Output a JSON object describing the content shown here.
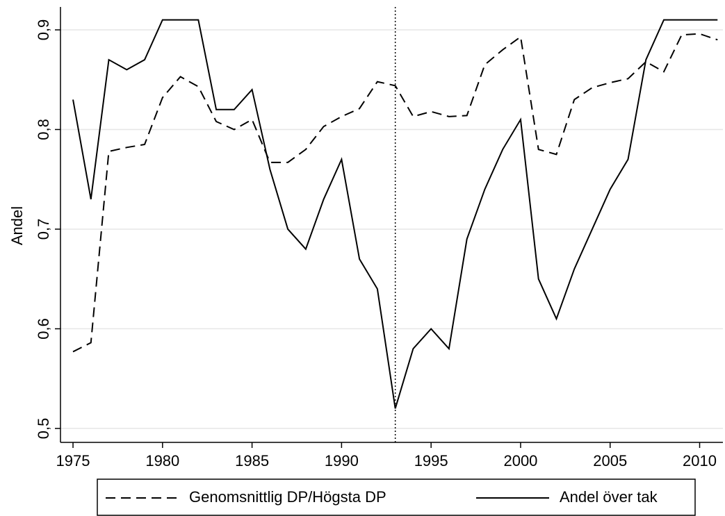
{
  "chart_data": {
    "type": "line",
    "y_label": "Andel",
    "x": [
      1975,
      1976,
      1977,
      1978,
      1979,
      1980,
      1981,
      1982,
      1983,
      1984,
      1985,
      1986,
      1987,
      1988,
      1989,
      1990,
      1991,
      1992,
      1993,
      1994,
      1995,
      1996,
      1997,
      1998,
      1999,
      2000,
      2001,
      2002,
      2003,
      2004,
      2005,
      2006,
      2007,
      2008,
      2009,
      2010,
      2011
    ],
    "series": [
      {
        "name": "Genomsnittlig DP/Högsta DP",
        "color": "#000000",
        "dash": "14 8",
        "values": [
          0.577,
          0.586,
          0.778,
          0.782,
          0.785,
          0.832,
          0.853,
          0.843,
          0.808,
          0.8,
          0.81,
          0.767,
          0.767,
          0.78,
          0.803,
          0.813,
          0.821,
          0.848,
          0.844,
          0.813,
          0.818,
          0.813,
          0.814,
          0.865,
          0.88,
          0.893,
          0.78,
          0.775,
          0.83,
          0.842,
          0.847,
          0.851,
          0.868,
          0.858,
          0.895,
          0.896,
          0.89
        ]
      },
      {
        "name": "Andel över tak",
        "color": "#000000",
        "values": [
          0.83,
          0.73,
          0.87,
          0.86,
          0.87,
          0.91,
          0.91,
          0.91,
          0.82,
          0.82,
          0.84,
          0.76,
          0.7,
          0.68,
          0.73,
          0.77,
          0.67,
          0.64,
          0.52,
          0.58,
          0.6,
          0.58,
          0.69,
          0.74,
          0.78,
          0.81,
          0.65,
          0.61,
          0.66,
          0.7,
          0.74,
          0.77,
          0.87,
          0.91,
          0.91,
          0.91,
          0.91
        ]
      }
    ],
    "xlim": [
      1974.3,
      2011.3
    ],
    "xticks": [
      1975,
      1980,
      1985,
      1990,
      1995,
      2000,
      2005,
      2010
    ],
    "ylim": [
      0.486,
      0.923
    ],
    "yticks": [
      {
        "value": 0.5,
        "label": "0,5"
      },
      {
        "value": 0.6,
        "label": "0,6"
      },
      {
        "value": 0.7,
        "label": "0,7"
      },
      {
        "value": 0.8,
        "label": "0,8"
      },
      {
        "value": 0.9,
        "label": "0,9"
      }
    ],
    "grid": true,
    "vline": 1993
  }
}
